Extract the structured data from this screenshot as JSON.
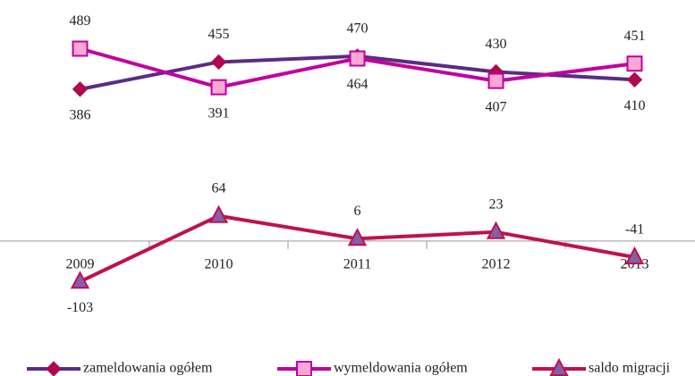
{
  "chart_data": {
    "type": "line",
    "categories": [
      "2009",
      "2010",
      "2011",
      "2012",
      "2013"
    ],
    "series": [
      {
        "name": "zameldowania ogółem",
        "color": "#5b2c83",
        "marker": "diamond",
        "marker_color": "#b0084f",
        "values": [
          386,
          455,
          470,
          430,
          410
        ]
      },
      {
        "name": "wymeldowania ogółem",
        "color": "#c000a0",
        "marker": "square",
        "marker_color": "#f9a8d4",
        "values": [
          489,
          391,
          464,
          407,
          451
        ]
      },
      {
        "name": "saldo migracji",
        "color": "#c0104f",
        "marker": "triangle",
        "marker_color": "#8060a8",
        "values": [
          -103,
          64,
          6,
          23,
          -41
        ]
      }
    ],
    "ylim": [
      -150,
      590
    ],
    "legend": "bottom"
  }
}
